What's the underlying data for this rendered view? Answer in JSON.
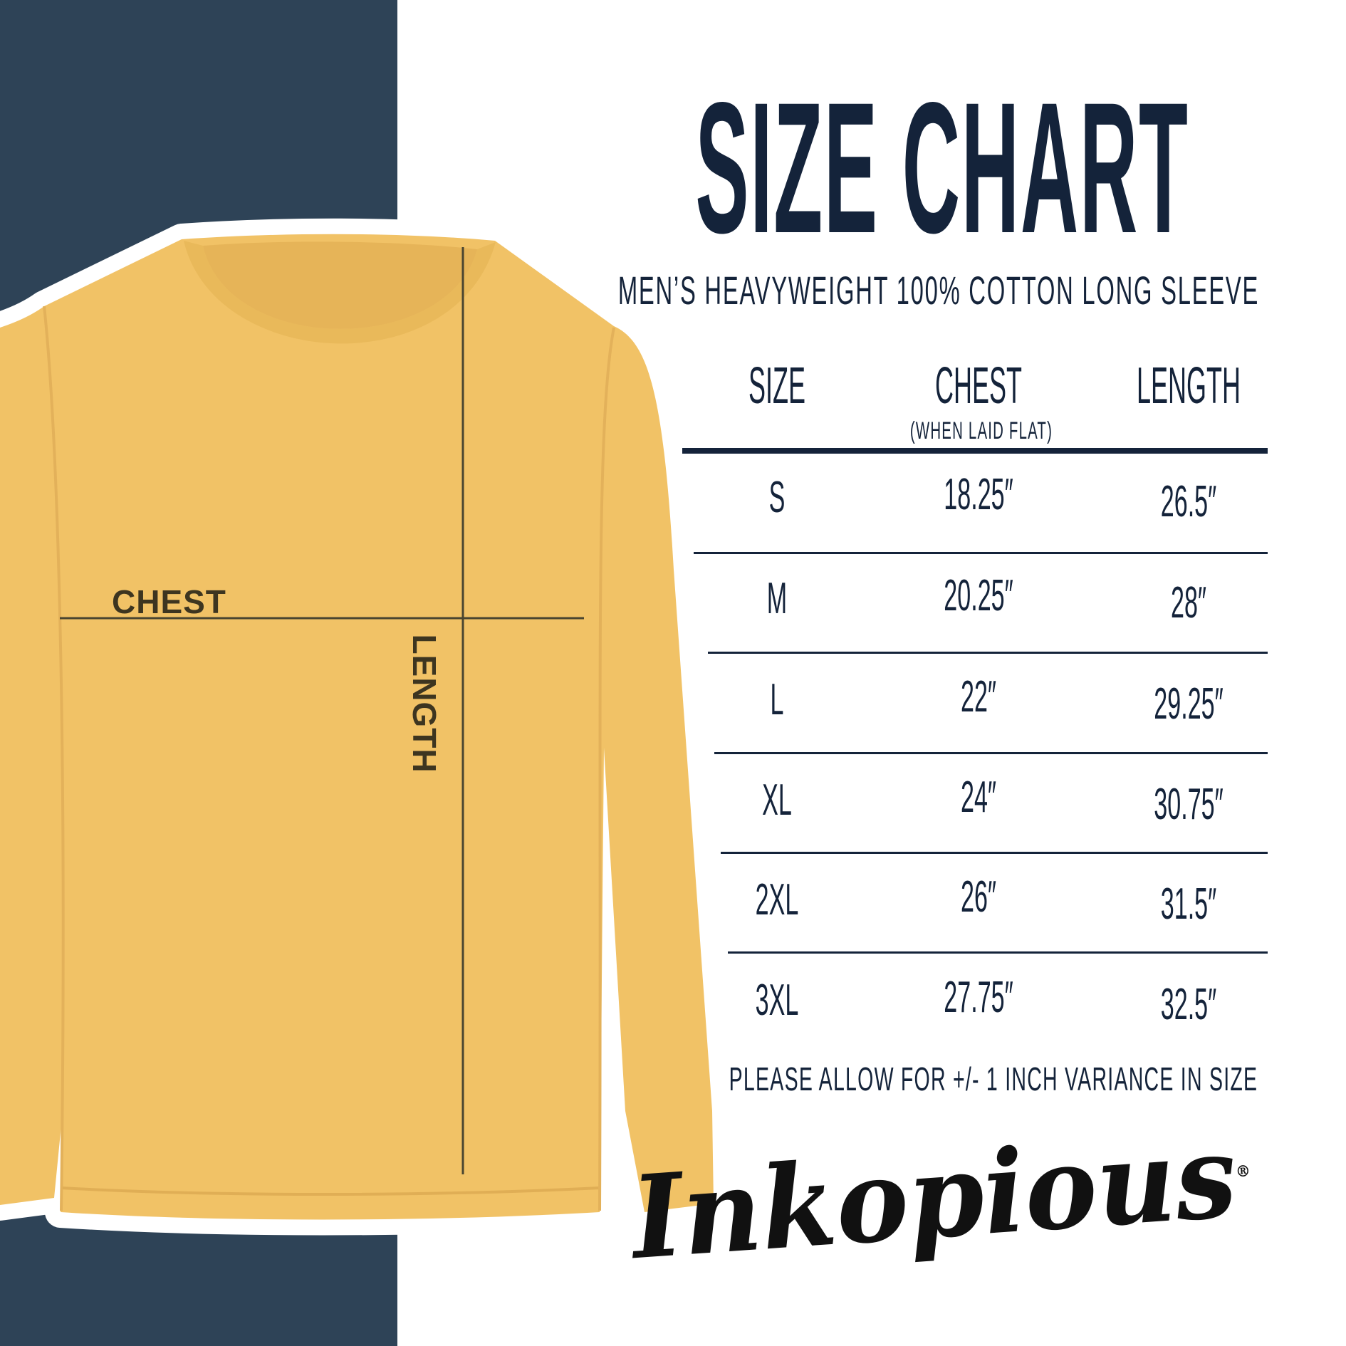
{
  "colors": {
    "navy_panel": "#2e4357",
    "text": "#14233a",
    "shirt": "#f1c266",
    "background": "#ffffff"
  },
  "title": "SIZE CHART",
  "subtitle": "MEN’S HEAVYWEIGHT 100% COTTON LONG SLEEVE",
  "table": {
    "headers": {
      "size": "SIZE",
      "chest": "CHEST",
      "chest_note": "(WHEN LAID FLAT)",
      "length": "LENGTH"
    },
    "rows": [
      {
        "size": "S",
        "chest": "18.25″",
        "length": "26.5″"
      },
      {
        "size": "M",
        "chest": "20.25″",
        "length": "28″"
      },
      {
        "size": "L",
        "chest": "22″",
        "length": "29.25″"
      },
      {
        "size": "XL",
        "chest": "24″",
        "length": "30.75″"
      },
      {
        "size": "2XL",
        "chest": "26″",
        "length": "31.5″"
      },
      {
        "size": "3XL",
        "chest": "27.75″",
        "length": "32.5″"
      }
    ]
  },
  "footer_note": "PLEASE ALLOW FOR +/- 1 INCH VARIANCE IN SIZE",
  "shirt_labels": {
    "chest": "CHEST",
    "length": "LENGTH"
  },
  "logo": {
    "text": "Inkopious",
    "mark": "®"
  }
}
